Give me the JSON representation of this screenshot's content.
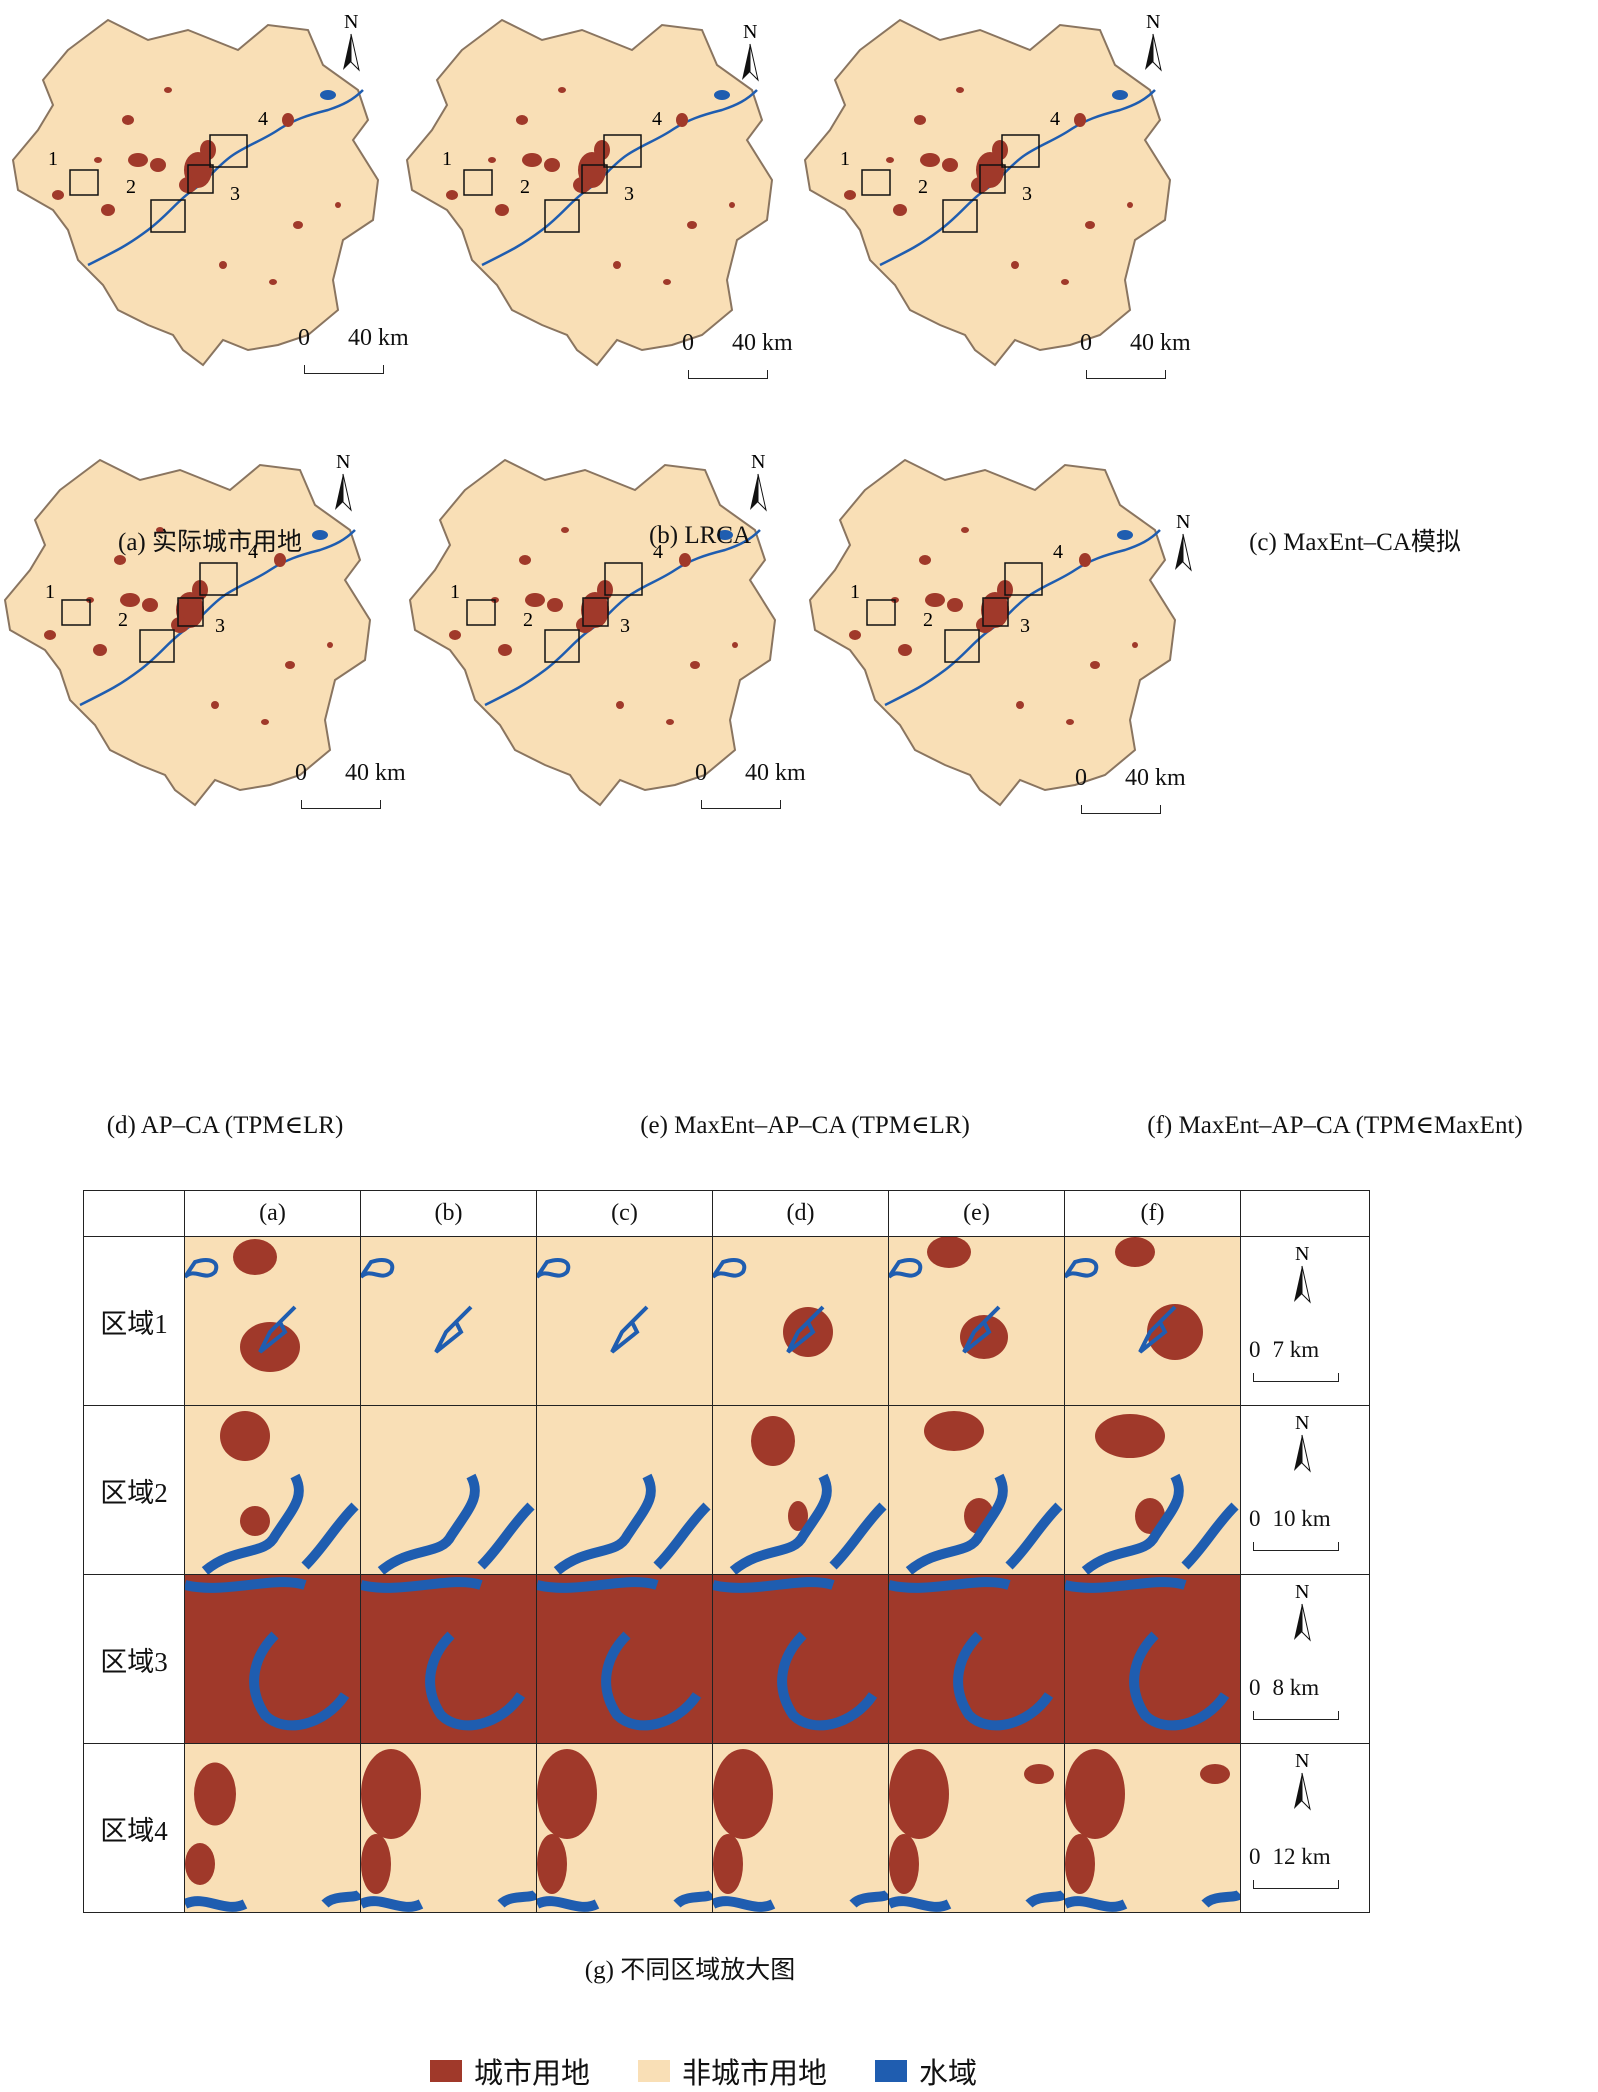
{
  "maps": [
    {
      "id": "a",
      "caption": "(a) 实际城市用地",
      "scale_zero": "0",
      "scale_dist": "40 km"
    },
    {
      "id": "b",
      "caption": "(b) LRCA",
      "scale_zero": "0",
      "scale_dist": "40 km"
    },
    {
      "id": "c",
      "caption": "(c) MaxEnt–CA模拟",
      "scale_zero": "0",
      "scale_dist": "40 km"
    },
    {
      "id": "d",
      "caption": "(d) AP–CA (TPM∈LR)",
      "scale_zero": "0",
      "scale_dist": "40 km"
    },
    {
      "id": "e",
      "caption": "(e) MaxEnt–AP–CA (TPM∈LR)",
      "scale_zero": "0",
      "scale_dist": "40 km"
    },
    {
      "id": "f",
      "caption": "(f) MaxEnt–AP–CA (TPM∈MaxEnt)",
      "scale_zero": "0",
      "scale_dist": "40 km"
    }
  ],
  "north_label": "N",
  "region_labels": [
    "1",
    "2",
    "3",
    "4"
  ],
  "grid": {
    "columns": [
      "(a)",
      "(b)",
      "(c)",
      "(d)",
      "(e)",
      "(f)"
    ],
    "rows": [
      {
        "label": "区域1",
        "scale_zero": "0",
        "scale_dist": "7 km"
      },
      {
        "label": "区域2",
        "scale_zero": "0",
        "scale_dist": "10 km"
      },
      {
        "label": "区域3",
        "scale_zero": "0",
        "scale_dist": "8 km"
      },
      {
        "label": "区域4",
        "scale_zero": "0",
        "scale_dist": "12 km"
      }
    ],
    "caption": "(g) 不同区域放大图"
  },
  "legend": [
    {
      "label": "城市用地",
      "color": "#a0392a"
    },
    {
      "label": "非城市用地",
      "color": "#f9dfb6"
    },
    {
      "label": "水域",
      "color": "#1f5db0"
    }
  ],
  "colors": {
    "urban": "#a0392a",
    "nonurban": "#f9dfb6",
    "water": "#1f5db0",
    "boundary": "#8a7560"
  }
}
